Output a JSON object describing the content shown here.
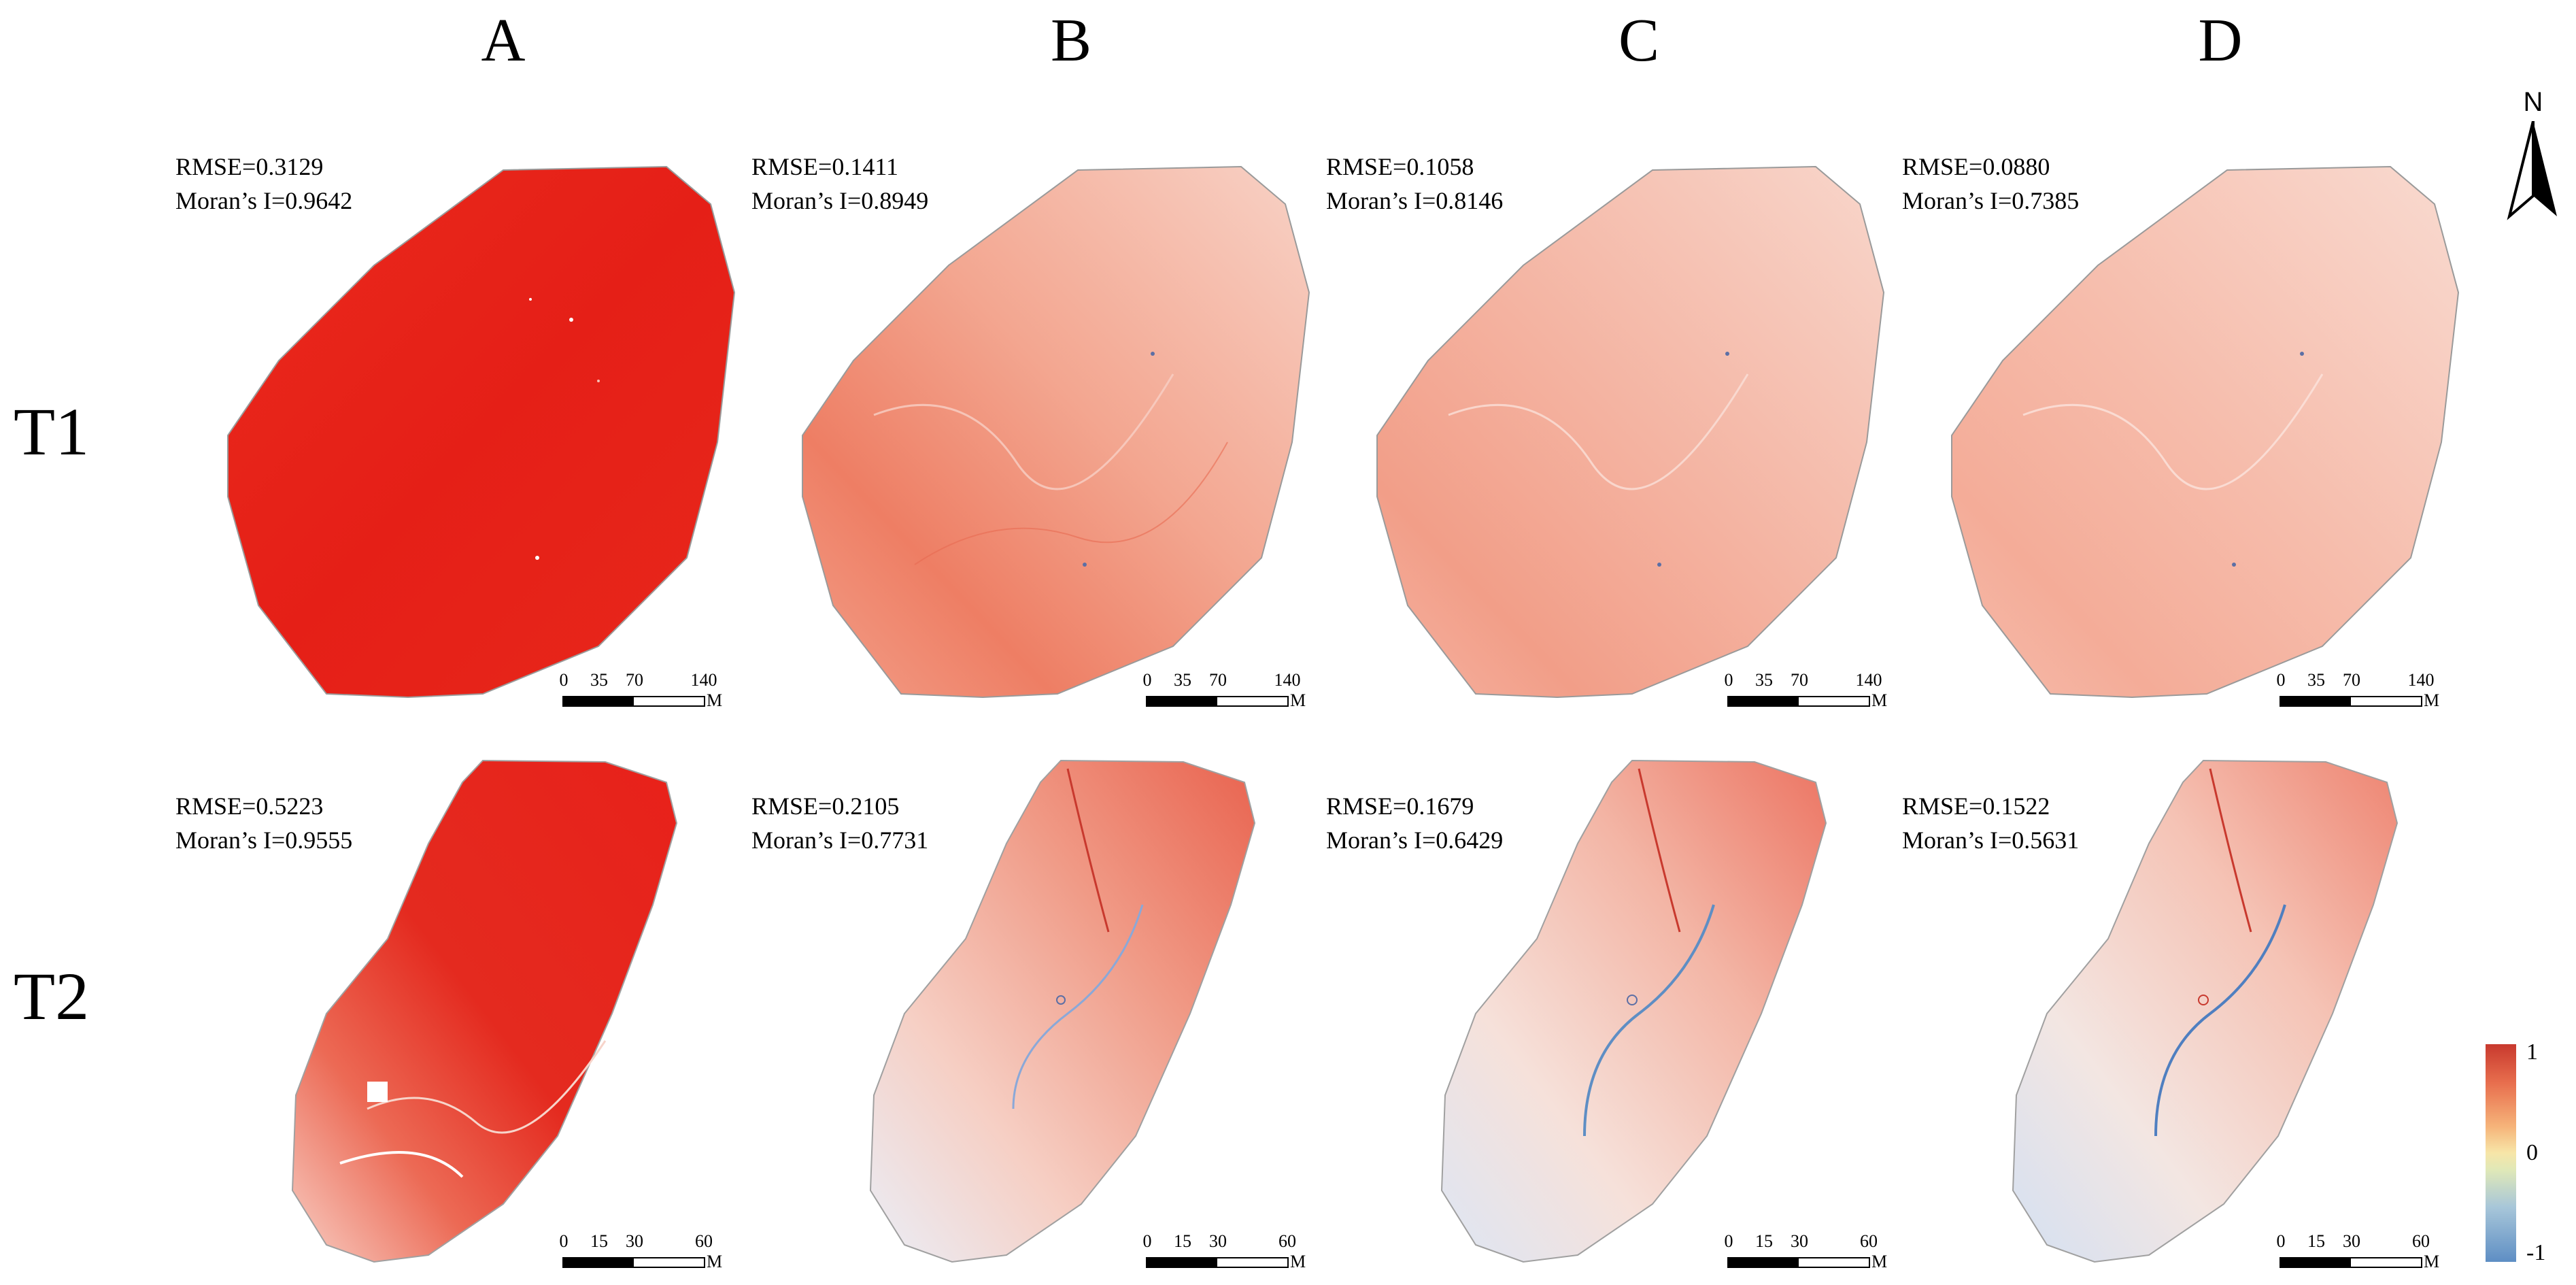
{
  "columns": [
    "A",
    "B",
    "C",
    "D"
  ],
  "rows": [
    "T1",
    "T2"
  ],
  "panels": {
    "t1": [
      {
        "rmse": "RMSE=0.3129",
        "moran": "Moran’s I=0.9642"
      },
      {
        "rmse": "RMSE=0.1411",
        "moran": "Moran’s I=0.8949"
      },
      {
        "rmse": "RMSE=0.1058",
        "moran": "Moran’s I=0.8146"
      },
      {
        "rmse": "RMSE=0.0880",
        "moran": "Moran’s I=0.7385"
      }
    ],
    "t2": [
      {
        "rmse": "RMSE=0.5223",
        "moran": "Moran’s I=0.9555"
      },
      {
        "rmse": "RMSE=0.2105",
        "moran": "Moran’s I=0.7731"
      },
      {
        "rmse": "RMSE=0.1679",
        "moran": "Moran’s I=0.6429"
      },
      {
        "rmse": "RMSE=0.1522",
        "moran": "Moran’s I=0.5631"
      }
    ]
  },
  "scalebar": {
    "t1_ticks": [
      "0",
      "35",
      "70",
      "140"
    ],
    "t2_ticks": [
      "0",
      "15",
      "30",
      "60"
    ],
    "unit": "M"
  },
  "north_label": "N",
  "legend": {
    "max": "1",
    "mid": "0",
    "min": "-1"
  },
  "colors": {
    "deep_red": "#e8231a",
    "strong_red": "#e33a2c",
    "medium_red": "#f29a85",
    "light_red": "#f5b7a8",
    "pale": "#f8dcd5",
    "pale_blue": "#dfe6f3"
  }
}
